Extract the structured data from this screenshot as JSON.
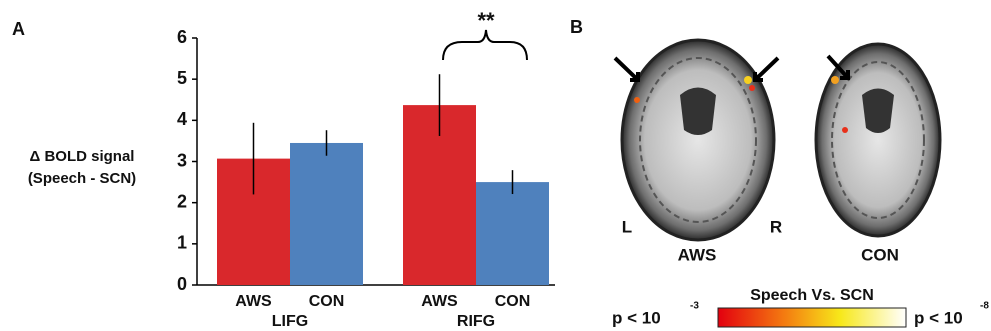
{
  "chart_data": {
    "type": "bar",
    "panel_label": "A",
    "ylabel": [
      "Δ BOLD signal",
      "(Speech - SCN)"
    ],
    "categories": [
      "LIFG",
      "RIFG"
    ],
    "series": [
      {
        "name": "AWS",
        "color": "#d9282c",
        "values": [
          3.07,
          4.37
        ],
        "errors": [
          0.87,
          0.75
        ]
      },
      {
        "name": "CON",
        "color": "#4f81bd",
        "values": [
          3.45,
          2.5
        ],
        "errors": [
          0.31,
          0.29
        ]
      }
    ],
    "ylim": [
      0,
      6
    ],
    "yticks": [
      0,
      1,
      2,
      3,
      4,
      5,
      6
    ],
    "annotation": "**"
  },
  "panel_b": {
    "panel_label": "B",
    "left": "L",
    "right": "R",
    "images": [
      "AWS",
      "CON"
    ],
    "colorbar": {
      "title": "Speech Vs. SCN",
      "low": {
        "text": "p < 10",
        "exponent": "-3"
      },
      "high": {
        "text": "p < 10",
        "exponent": "-8"
      }
    }
  }
}
